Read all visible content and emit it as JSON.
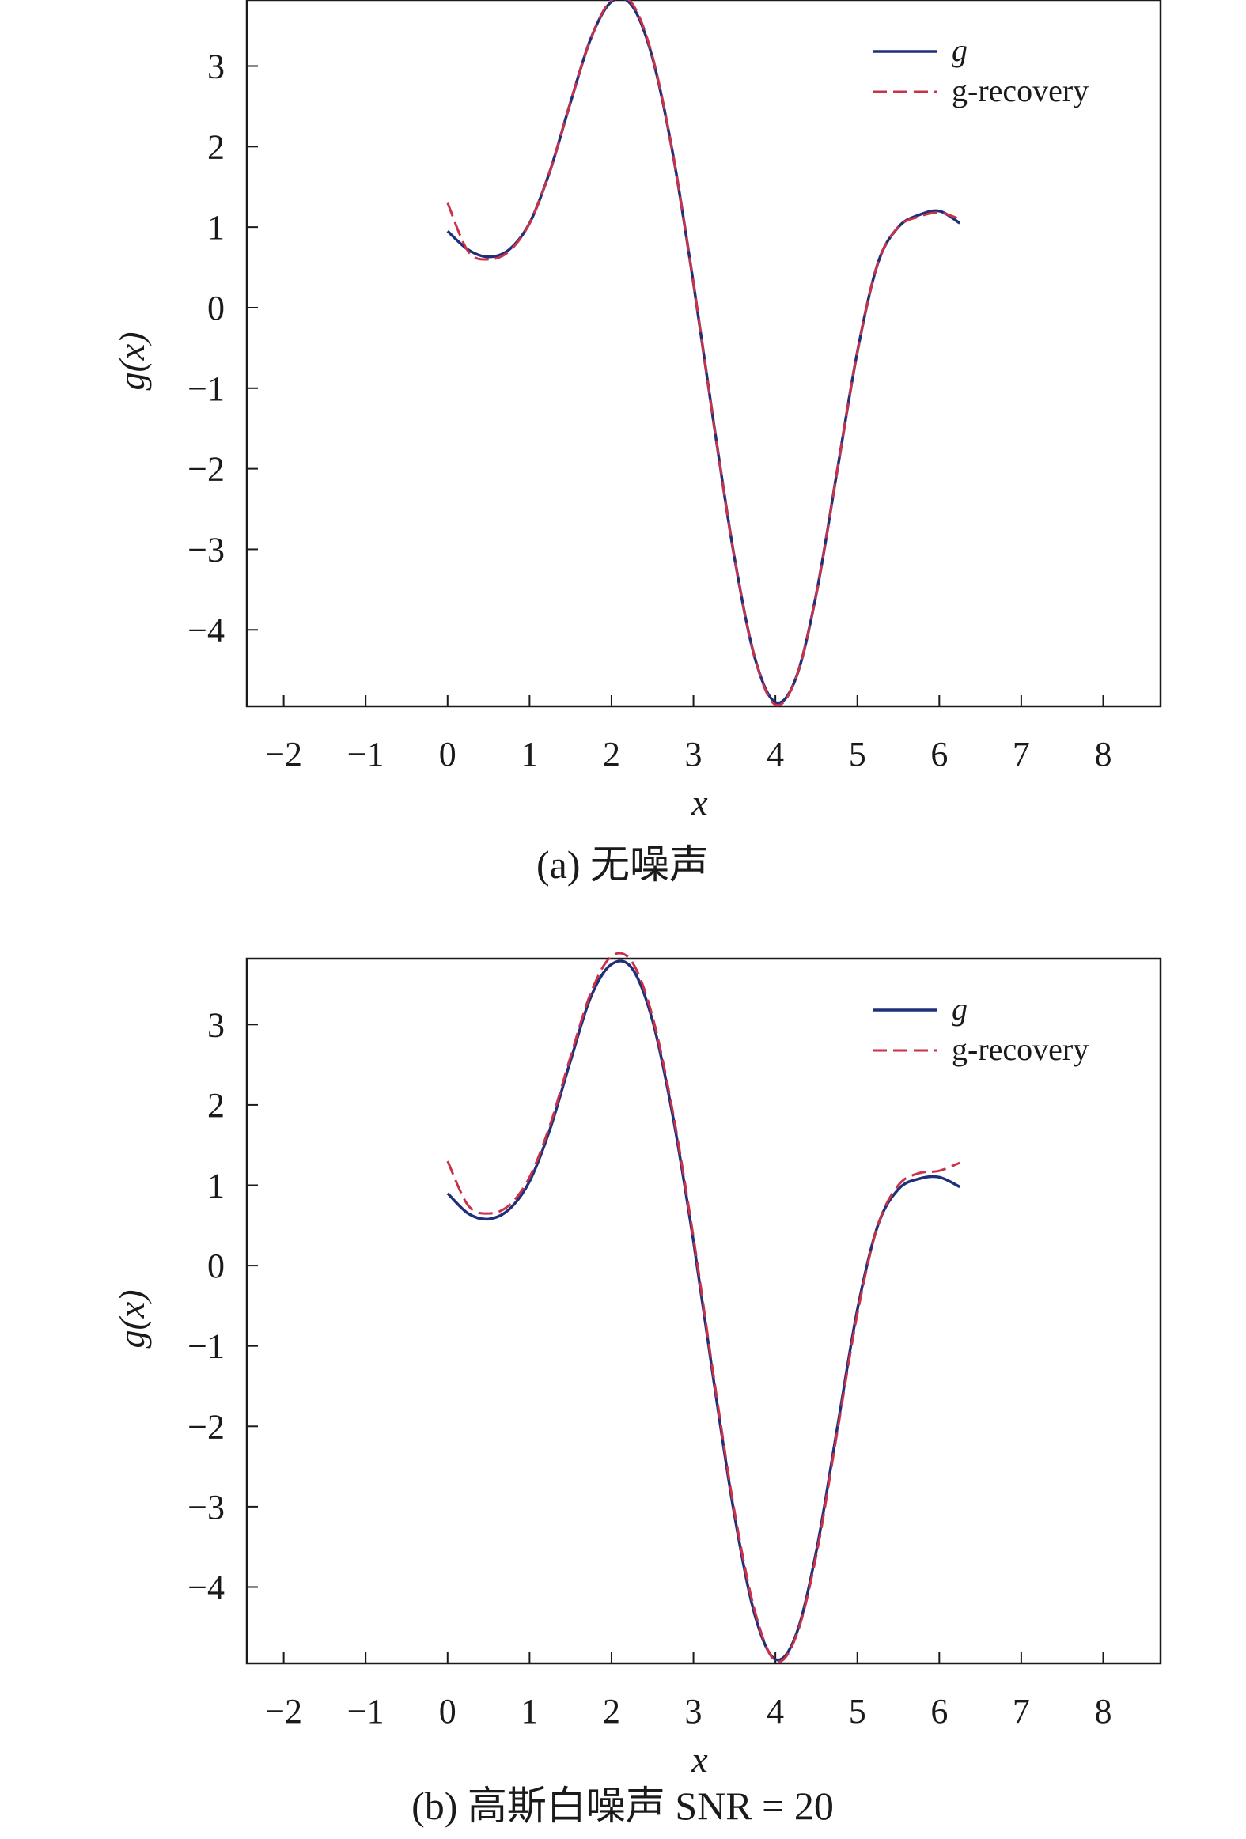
{
  "colors": {
    "g": "#1f2f7a",
    "g_recovery": "#c8324a",
    "frame": "#1a1a1a",
    "background": "#ffffff"
  },
  "chart_data": [
    {
      "type": "line",
      "caption": "(a) 无噪声",
      "xlabel": "x",
      "ylabel": "g(x)",
      "xlim": [
        -2.45,
        8.7
      ],
      "ylim": [
        -4.95,
        3.82
      ],
      "xticks": [
        -2,
        -1,
        0,
        1,
        2,
        3,
        4,
        5,
        6,
        7,
        8
      ],
      "xtick_labels": [
        "−2",
        "−1",
        "0",
        "1",
        "2",
        "3",
        "4",
        "5",
        "6",
        "7",
        "8"
      ],
      "yticks": [
        3,
        2,
        1,
        0,
        -1,
        -2,
        -3,
        -4
      ],
      "ytick_labels": [
        "3",
        "2",
        "1",
        "0",
        "−1",
        "−2",
        "−3",
        "−4"
      ],
      "grid": false,
      "legend_position": "top-right",
      "series": [
        {
          "name": "g",
          "style": "solid",
          "x": [
            0,
            0.25,
            0.5,
            0.75,
            1.0,
            1.25,
            1.5,
            1.75,
            2.0,
            2.25,
            2.5,
            2.75,
            3.0,
            3.25,
            3.5,
            3.75,
            4.0,
            4.25,
            4.5,
            4.75,
            5.0,
            5.25,
            5.5,
            5.75,
            6.0,
            6.25
          ],
          "y": [
            0.95,
            0.72,
            0.63,
            0.72,
            1.05,
            1.7,
            2.55,
            3.35,
            3.8,
            3.75,
            3.1,
            1.9,
            0.3,
            -1.45,
            -3.1,
            -4.35,
            -4.9,
            -4.6,
            -3.55,
            -2.05,
            -0.55,
            0.55,
            1.0,
            1.15,
            1.2,
            1.05
          ]
        },
        {
          "name": "g-recovery",
          "style": "dashed",
          "x": [
            0,
            0.25,
            0.5,
            0.75,
            1.0,
            1.25,
            1.5,
            1.75,
            2.0,
            2.25,
            2.5,
            2.75,
            3.0,
            3.25,
            3.5,
            3.75,
            4.0,
            4.25,
            4.5,
            4.75,
            5.0,
            5.25,
            5.5,
            5.75,
            6.0,
            6.25
          ],
          "y": [
            1.3,
            0.7,
            0.6,
            0.7,
            1.05,
            1.7,
            2.55,
            3.35,
            3.82,
            3.78,
            3.12,
            1.9,
            0.3,
            -1.45,
            -3.1,
            -4.35,
            -4.93,
            -4.6,
            -3.55,
            -2.05,
            -0.55,
            0.55,
            1.0,
            1.13,
            1.18,
            1.1
          ]
        }
      ]
    },
    {
      "type": "line",
      "caption": "(b) 高斯白噪声 SNR = 20",
      "xlabel": "x",
      "ylabel": "g(x)",
      "xlim": [
        -2.45,
        8.7
      ],
      "ylim": [
        -4.95,
        3.82
      ],
      "xticks": [
        -2,
        -1,
        0,
        1,
        2,
        3,
        4,
        5,
        6,
        7,
        8
      ],
      "xtick_labels": [
        "−2",
        "−1",
        "0",
        "1",
        "2",
        "3",
        "4",
        "5",
        "6",
        "7",
        "8"
      ],
      "yticks": [
        3,
        2,
        1,
        0,
        -1,
        -2,
        -3,
        -4
      ],
      "ytick_labels": [
        "3",
        "2",
        "1",
        "0",
        "−1",
        "−2",
        "−3",
        "−4"
      ],
      "grid": false,
      "legend_position": "top-right",
      "series": [
        {
          "name": "g",
          "style": "solid",
          "x": [
            0,
            0.25,
            0.5,
            0.75,
            1.0,
            1.25,
            1.5,
            1.75,
            2.0,
            2.25,
            2.5,
            2.75,
            3.0,
            3.25,
            3.5,
            3.75,
            4.0,
            4.25,
            4.5,
            4.75,
            5.0,
            5.25,
            5.5,
            5.75,
            6.0,
            6.25
          ],
          "y": [
            0.9,
            0.65,
            0.58,
            0.7,
            1.05,
            1.7,
            2.55,
            3.35,
            3.75,
            3.7,
            3.05,
            1.85,
            0.3,
            -1.45,
            -3.1,
            -4.35,
            -4.9,
            -4.6,
            -3.55,
            -2.05,
            -0.55,
            0.5,
            0.95,
            1.08,
            1.1,
            0.98
          ]
        },
        {
          "name": "g-recovery",
          "style": "dashed",
          "x": [
            0,
            0.25,
            0.5,
            0.75,
            1.0,
            1.25,
            1.5,
            1.75,
            2.0,
            2.25,
            2.5,
            2.75,
            3.0,
            3.25,
            3.5,
            3.75,
            4.0,
            4.25,
            4.5,
            4.75,
            5.0,
            5.25,
            5.5,
            5.75,
            6.0,
            6.25
          ],
          "y": [
            1.3,
            0.75,
            0.65,
            0.75,
            1.1,
            1.75,
            2.6,
            3.4,
            3.85,
            3.78,
            3.1,
            1.9,
            0.35,
            -1.4,
            -3.05,
            -4.3,
            -4.92,
            -4.62,
            -3.6,
            -2.1,
            -0.6,
            0.5,
            1.0,
            1.15,
            1.18,
            1.28
          ]
        }
      ]
    }
  ]
}
